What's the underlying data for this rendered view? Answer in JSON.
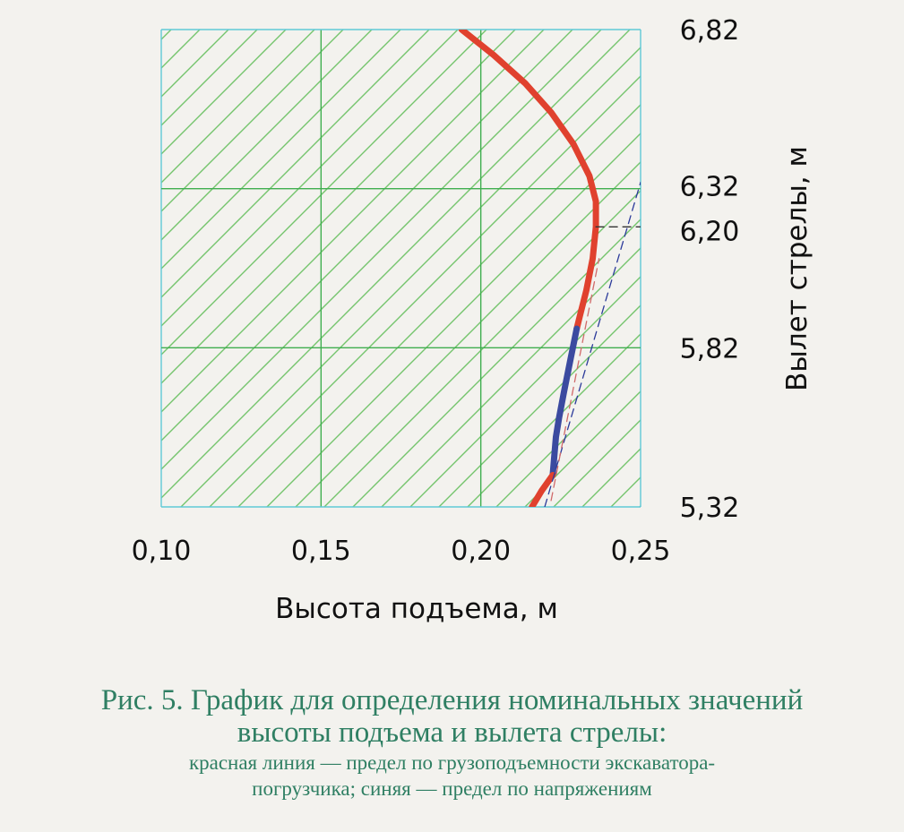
{
  "chart_data": {
    "type": "line",
    "title": "",
    "xlabel": "Высота подъема, м",
    "ylabel": "Вылет стрелы, м",
    "xlim": [
      0.1,
      0.25
    ],
    "ylim": [
      5.32,
      6.82
    ],
    "x_ticks": [
      "0,10",
      "0,15",
      "0,20",
      "0,25"
    ],
    "y_ticks": [
      {
        "value": 6.82,
        "label": "6,82"
      },
      {
        "value": 6.32,
        "label": "6,32"
      },
      {
        "value": 6.2,
        "label": "6,20"
      },
      {
        "value": 5.82,
        "label": "5,82"
      },
      {
        "value": 5.32,
        "label": "5,32"
      }
    ],
    "grid": true,
    "hatched_region": true,
    "series": [
      {
        "color": "#e0412e",
        "style": "solid-thick",
        "points": [
          [
            0.194,
            6.82
          ],
          [
            0.204,
            6.74
          ],
          [
            0.214,
            6.65
          ],
          [
            0.222,
            6.56
          ],
          [
            0.229,
            6.46
          ],
          [
            0.234,
            6.36
          ],
          [
            0.236,
            6.28
          ],
          [
            0.236,
            6.2
          ],
          [
            0.235,
            6.1
          ],
          [
            0.233,
            6.0
          ],
          [
            0.231,
            5.92
          ],
          [
            0.23,
            5.88
          ]
        ]
      },
      {
        "color": "#3b4aa0",
        "style": "solid-thick",
        "points": [
          [
            0.23,
            5.88
          ],
          [
            0.228,
            5.78
          ],
          [
            0.226,
            5.68
          ],
          [
            0.2245,
            5.6
          ],
          [
            0.2235,
            5.54
          ],
          [
            0.2225,
            5.42
          ]
        ]
      },
      {
        "color": "#e0412e",
        "style": "solid-thick",
        "points": [
          [
            0.2225,
            5.42
          ],
          [
            0.219,
            5.37
          ],
          [
            0.216,
            5.32
          ]
        ]
      },
      {
        "color": "#2b3a9a",
        "style": "dashed-thin",
        "points": [
          [
            0.22,
            5.32
          ],
          [
            0.25,
            6.34
          ]
        ]
      },
      {
        "color": "#d06a6a",
        "style": "dashed-thin",
        "points": [
          [
            0.222,
            5.34
          ],
          [
            0.237,
            6.1
          ]
        ]
      },
      {
        "color": "#333333",
        "style": "dashed-thin",
        "points": [
          [
            0.236,
            6.2
          ],
          [
            0.25,
            6.2
          ]
        ]
      }
    ]
  },
  "caption": {
    "line1": "Рис. 5. График для определения номинальных значений",
    "line2": "высоты подъема и вылета стрелы:",
    "line3": "красная линия — предел по грузоподъемности экскаватора-",
    "line4": "погрузчика; синяя — предел по напряжениям"
  }
}
